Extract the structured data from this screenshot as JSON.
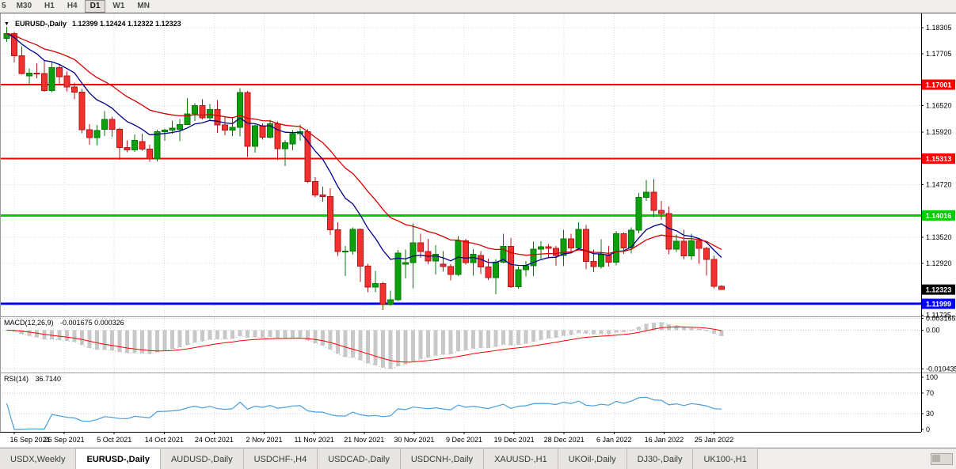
{
  "toolbar": {
    "periods": [
      {
        "label": "5",
        "active": false
      },
      {
        "label": "M30",
        "active": false
      },
      {
        "label": "H1",
        "active": false
      },
      {
        "label": "H4",
        "active": false
      },
      {
        "label": "D1",
        "active": true
      },
      {
        "label": "W1",
        "active": false
      },
      {
        "label": "MN",
        "active": false
      }
    ]
  },
  "chart": {
    "title": "EURUSD-,Daily",
    "ohlc_display": "1.12399 1.12424 1.12322 1.12323",
    "collapse_icon": "▼"
  },
  "indicators": {
    "macd": {
      "title": "MACD(12,26,9)",
      "values": "-0.001675 0.000326"
    },
    "rsi": {
      "title": "RSI(14)",
      "value": "36.7140"
    }
  },
  "tabs": [
    {
      "label": "USDX,Weekly",
      "active": false
    },
    {
      "label": "EURUSD-,Daily",
      "active": true
    },
    {
      "label": "AUDUSD-,Daily",
      "active": false
    },
    {
      "label": "USDCHF-,H4",
      "active": false
    },
    {
      "label": "USDCAD-,Daily",
      "active": false
    },
    {
      "label": "USDCNH-,Daily",
      "active": false
    },
    {
      "label": "XAUUSD-,H1",
      "active": false
    },
    {
      "label": "UKOil-,Daily",
      "active": false
    },
    {
      "label": "DJ30-,Daily",
      "active": false
    },
    {
      "label": "UK100-,H1",
      "active": false
    }
  ],
  "colors": {
    "bull": "#0CA10C",
    "bull_border": "#067806",
    "bear": "#F23030",
    "bear_border": "#B01818",
    "ma_fast": "#00008B",
    "ma_slow": "#D40000",
    "level_red": "#FF0000",
    "level_green": "#00CC00",
    "level_blue": "#0000FF",
    "current_price_bg": "#000000",
    "macd_hist": "#C8C8C8",
    "macd_main_dots": "#ABABAB",
    "macd_signal": "#FF0000",
    "rsi_line": "#4A9EDC",
    "grid": "#DCDCDC",
    "pane_level": "#C9C9C9"
  },
  "chart_data": {
    "type": "candlestick",
    "symbol": "EURUSD-",
    "timeframe": "Daily",
    "last_ohlc": {
      "open": "1.12399",
      "high": "1.12424",
      "low": "1.12322",
      "close": "1.12323"
    },
    "x_labels": [
      "16 Sep 2021",
      "26 Sep 2021",
      "5 Oct 2021",
      "14 Oct 2021",
      "24 Oct 2021",
      "2 Nov 2021",
      "11 Nov 2021",
      "21 Nov 2021",
      "30 Nov 2021",
      "9 Dec 2021",
      "19 Dec 2021",
      "28 Dec 2021",
      "6 Jan 2022",
      "16 Jan 2022",
      "25 Jan 2022"
    ],
    "y_axis": {
      "range_top": 1.1859,
      "range_bottom": 1.1173,
      "ticks": [
        {
          "label": "1.18305",
          "price": 1.18305
        },
        {
          "label": "1.17705",
          "price": 1.17705
        },
        {
          "label": "1.16520",
          "price": 1.1652
        },
        {
          "label": "1.15920",
          "price": 1.1592
        },
        {
          "label": "1.14720",
          "price": 1.1472
        },
        {
          "label": "1.13520",
          "price": 1.1352
        },
        {
          "label": "1.12920",
          "price": 1.1292
        },
        {
          "label": "1.11735",
          "price": 1.11735
        }
      ]
    },
    "levels": [
      {
        "label": "1.17001",
        "price": 1.17001,
        "colorKey": "level_red",
        "width": 2
      },
      {
        "label": "1.15313",
        "price": 1.15313,
        "colorKey": "level_red",
        "width": 2
      },
      {
        "label": "1.14016",
        "price": 1.14016,
        "colorKey": "level_green",
        "width": 3
      },
      {
        "label": "1.11999",
        "price": 1.11999,
        "colorKey": "level_blue",
        "width": 3
      }
    ],
    "current_price": {
      "label": "1.12323",
      "price": 1.12323
    },
    "overlays": [
      {
        "name": "ma-fast",
        "period": 10,
        "colorKey": "ma_fast"
      },
      {
        "name": "ma-slow",
        "period": 21,
        "colorKey": "ma_slow"
      }
    ],
    "macd": {
      "params": [
        12,
        26,
        9
      ],
      "range": {
        "top": 0.0035,
        "bottom": -0.0112
      },
      "axis_ticks": [
        {
          "label": "0.003165",
          "value": 0.003165
        },
        {
          "label": "0.00",
          "value": 0
        },
        {
          "label": "-0.010435",
          "value": -0.010435
        }
      ]
    },
    "rsi": {
      "period": 14,
      "axis_ticks": [
        {
          "label": "100",
          "value": 100
        },
        {
          "label": "70",
          "value": 70
        },
        {
          "label": "30",
          "value": 30
        },
        {
          "label": "0",
          "value": 0
        }
      ],
      "levels": [
        70,
        30
      ]
    },
    "candles": [
      [
        1.1806,
        1.1832,
        1.1798,
        1.1817
      ],
      [
        1.1817,
        1.1821,
        1.1751,
        1.1766
      ],
      [
        1.1766,
        1.1788,
        1.1724,
        1.1725
      ],
      [
        1.172,
        1.1737,
        1.17,
        1.1726
      ],
      [
        1.1726,
        1.1749,
        1.1715,
        1.1725
      ],
      [
        1.1725,
        1.1756,
        1.1684,
        1.1687
      ],
      [
        1.1687,
        1.1751,
        1.1683,
        1.1739
      ],
      [
        1.1739,
        1.1747,
        1.1701,
        1.1718
      ],
      [
        1.172,
        1.173,
        1.1685,
        1.1695
      ],
      [
        1.1695,
        1.1705,
        1.1667,
        1.1683
      ],
      [
        1.1683,
        1.169,
        1.1589,
        1.1597
      ],
      [
        1.1597,
        1.161,
        1.1563,
        1.1579
      ],
      [
        1.1579,
        1.1608,
        1.1562,
        1.1595
      ],
      [
        1.1598,
        1.164,
        1.1583,
        1.1621
      ],
      [
        1.1621,
        1.1627,
        1.1581,
        1.1598
      ],
      [
        1.1598,
        1.1602,
        1.1529,
        1.1557
      ],
      [
        1.1557,
        1.1573,
        1.1546,
        1.1551
      ],
      [
        1.1551,
        1.1586,
        1.1547,
        1.1573
      ],
      [
        1.157,
        1.1588,
        1.1549,
        1.1553
      ],
      [
        1.1553,
        1.1563,
        1.1524,
        1.153
      ],
      [
        1.153,
        1.1597,
        1.1525,
        1.1593
      ],
      [
        1.1593,
        1.16,
        1.1572,
        1.1596
      ],
      [
        1.1596,
        1.1618,
        1.1588,
        1.1601
      ],
      [
        1.1598,
        1.1622,
        1.1571,
        1.1609
      ],
      [
        1.1609,
        1.1669,
        1.1609,
        1.1633
      ],
      [
        1.1633,
        1.1658,
        1.1617,
        1.1652
      ],
      [
        1.1652,
        1.1667,
        1.1621,
        1.1624
      ],
      [
        1.1624,
        1.1656,
        1.1619,
        1.1643
      ],
      [
        1.1643,
        1.1665,
        1.159,
        1.1608
      ],
      [
        1.1608,
        1.1626,
        1.1585,
        1.1596
      ],
      [
        1.1596,
        1.1626,
        1.1583,
        1.1603
      ],
      [
        1.1603,
        1.1692,
        1.1582,
        1.1682
      ],
      [
        1.1682,
        1.1686,
        1.1535,
        1.1559
      ],
      [
        1.1559,
        1.1609,
        1.1545,
        1.1606
      ],
      [
        1.1606,
        1.1612,
        1.1575,
        1.158
      ],
      [
        1.158,
        1.162,
        1.1577,
        1.1611
      ],
      [
        1.1611,
        1.1616,
        1.1528,
        1.1554
      ],
      [
        1.1554,
        1.1574,
        1.1514,
        1.1567
      ],
      [
        1.1565,
        1.1596,
        1.155,
        1.1588
      ],
      [
        1.1588,
        1.1609,
        1.1572,
        1.1593
      ],
      [
        1.1593,
        1.1598,
        1.1475,
        1.1479
      ],
      [
        1.1479,
        1.1489,
        1.1443,
        1.1448
      ],
      [
        1.1448,
        1.1467,
        1.1433,
        1.1445
      ],
      [
        1.1445,
        1.1464,
        1.1357,
        1.1369
      ],
      [
        1.1369,
        1.1386,
        1.1309,
        1.1319
      ],
      [
        1.1319,
        1.1332,
        1.1263,
        1.132
      ],
      [
        1.132,
        1.1374,
        1.1312,
        1.137
      ],
      [
        1.137,
        1.1372,
        1.125,
        1.1286
      ],
      [
        1.1286,
        1.1291,
        1.1226,
        1.1238
      ],
      [
        1.1238,
        1.1275,
        1.1226,
        1.1246
      ],
      [
        1.1246,
        1.125,
        1.1186,
        1.1199
      ],
      [
        1.1199,
        1.123,
        1.1196,
        1.1209
      ],
      [
        1.1209,
        1.1323,
        1.1206,
        1.1316
      ],
      [
        1.129,
        1.1324,
        1.1258,
        1.1294
      ],
      [
        1.1294,
        1.1383,
        1.1235,
        1.1339
      ],
      [
        1.1339,
        1.136,
        1.1305,
        1.1319
      ],
      [
        1.1319,
        1.1348,
        1.129,
        1.1298
      ],
      [
        1.1298,
        1.1334,
        1.1267,
        1.1313
      ],
      [
        1.129,
        1.132,
        1.1273,
        1.1285
      ],
      [
        1.1285,
        1.129,
        1.1253,
        1.1267
      ],
      [
        1.1267,
        1.1354,
        1.1263,
        1.1344
      ],
      [
        1.1344,
        1.1348,
        1.1289,
        1.1294
      ],
      [
        1.1294,
        1.1325,
        1.1264,
        1.1313
      ],
      [
        1.131,
        1.132,
        1.1268,
        1.1284
      ],
      [
        1.1284,
        1.1303,
        1.1254,
        1.126
      ],
      [
        1.126,
        1.1302,
        1.1222,
        1.1295
      ],
      [
        1.1295,
        1.136,
        1.1292,
        1.1331
      ],
      [
        1.1331,
        1.135,
        1.1236,
        1.1239
      ],
      [
        1.1239,
        1.1285,
        1.1234,
        1.1278
      ],
      [
        1.1278,
        1.1298,
        1.1262,
        1.1287
      ],
      [
        1.1287,
        1.1342,
        1.1263,
        1.1325
      ],
      [
        1.1325,
        1.1343,
        1.1303,
        1.133
      ],
      [
        1.133,
        1.1336,
        1.1304,
        1.1326
      ],
      [
        1.1326,
        1.1332,
        1.1287,
        1.131
      ],
      [
        1.131,
        1.1369,
        1.1286,
        1.1348
      ],
      [
        1.1348,
        1.136,
        1.1315,
        1.1327
      ],
      [
        1.1327,
        1.1386,
        1.1322,
        1.137
      ],
      [
        1.137,
        1.138,
        1.1279,
        1.1297
      ],
      [
        1.1297,
        1.1324,
        1.1272,
        1.1285
      ],
      [
        1.1285,
        1.1347,
        1.128,
        1.1312
      ],
      [
        1.1312,
        1.1332,
        1.1285,
        1.1295
      ],
      [
        1.1295,
        1.1366,
        1.1288,
        1.136
      ],
      [
        1.136,
        1.1363,
        1.1314,
        1.1327
      ],
      [
        1.1327,
        1.1374,
        1.1315,
        1.1368
      ],
      [
        1.1368,
        1.1453,
        1.1361,
        1.1443
      ],
      [
        1.1443,
        1.1483,
        1.1435,
        1.1455
      ],
      [
        1.1455,
        1.1484,
        1.1398,
        1.1413
      ],
      [
        1.1413,
        1.1435,
        1.1391,
        1.1406
      ],
      [
        1.1406,
        1.1422,
        1.1313,
        1.1325
      ],
      [
        1.1325,
        1.1358,
        1.1318,
        1.1343
      ],
      [
        1.1343,
        1.1369,
        1.1301,
        1.1309
      ],
      [
        1.1309,
        1.136,
        1.13,
        1.1344
      ],
      [
        1.1344,
        1.1349,
        1.1291,
        1.1326
      ],
      [
        1.1326,
        1.133,
        1.1264,
        1.1301
      ],
      [
        1.1301,
        1.131,
        1.1235,
        1.124
      ],
      [
        1.12399,
        1.12424,
        1.12322,
        1.12323
      ]
    ]
  }
}
